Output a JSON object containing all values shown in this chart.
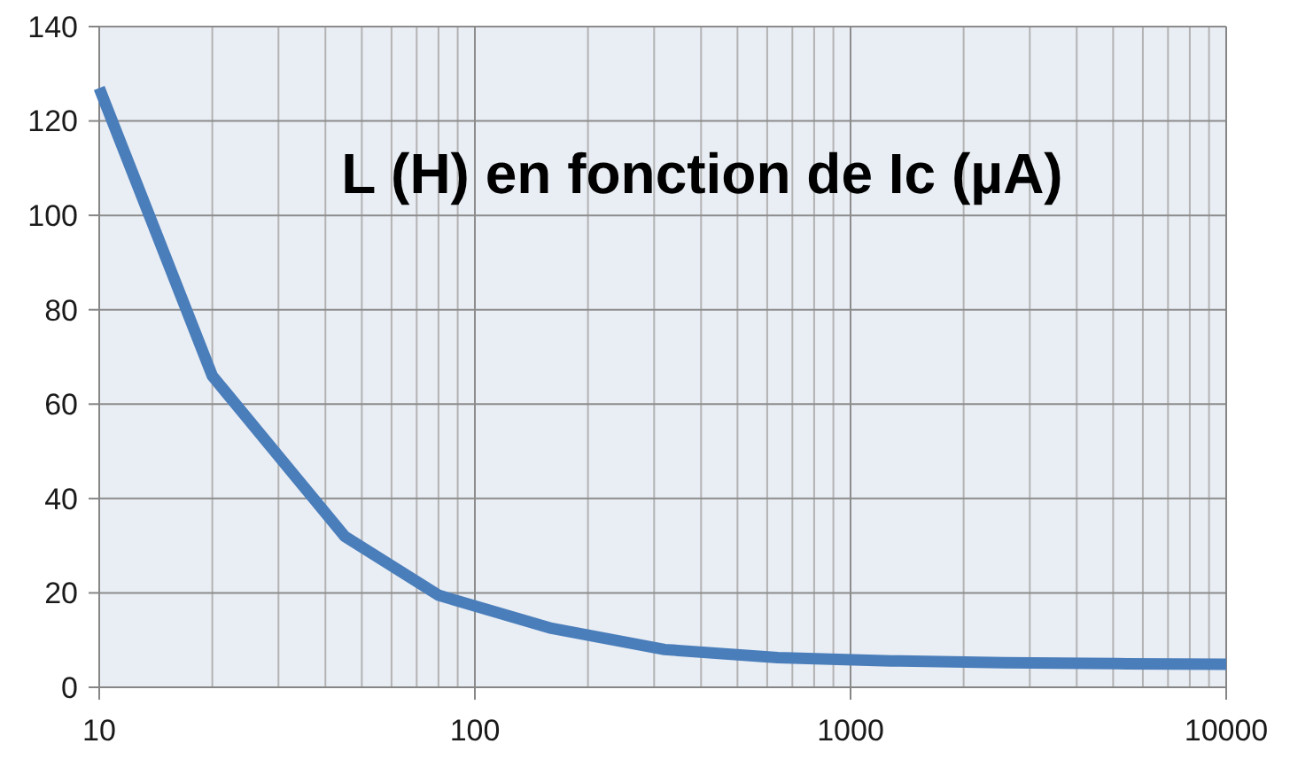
{
  "chart_data": {
    "type": "line",
    "title": "L (H) en fonction de Ic (µA)",
    "series": [
      {
        "color": "#4a7ebb",
        "x": [
          10,
          20,
          45,
          80,
          160,
          320,
          640,
          1280,
          2560,
          5120,
          10000
        ],
        "values": [
          127,
          66,
          32,
          19.5,
          12.5,
          8,
          6.3,
          5.6,
          5.2,
          5,
          4.9
        ]
      }
    ],
    "xlim": [
      10,
      10000
    ],
    "xticks": [
      10,
      100,
      1000,
      10000
    ],
    "ylim": [
      0,
      140
    ],
    "yticks": [
      0,
      20,
      40,
      60,
      80,
      100,
      120,
      140
    ],
    "log": "x",
    "grid": true
  }
}
